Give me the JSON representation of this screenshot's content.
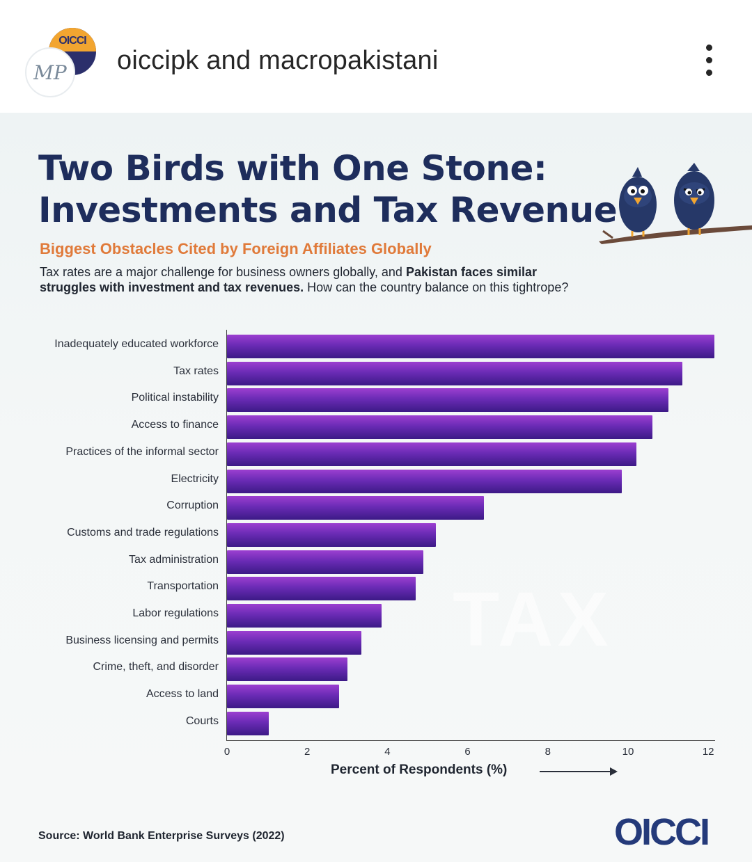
{
  "post": {
    "handles_a": "oiccipk",
    "handles_joiner": "and",
    "handles_b": "macropakistani",
    "avatar_back_text": "OICCI",
    "avatar_front_text": "MP"
  },
  "infographic": {
    "title_line1": "Two Birds with One Stone:",
    "title_line2": "Investments and Tax Revenue",
    "subtitle": "Biggest Obstacles Cited by Foreign Affiliates Globally",
    "desc_part1": "Tax rates are a major challenge for business owners globally, and ",
    "desc_bold": "Pakistan faces similar struggles with investment and tax revenues.",
    "desc_part2": " How can the country balance on this tightrope?",
    "watermark": "TAX",
    "source": "Source: World Bank Enterprise Surveys (2022)",
    "logo": "OICCI"
  },
  "colors": {
    "title": "#1e2d5c",
    "subtitle": "#e07a3a",
    "bar_top": "#9c3fd0",
    "bar_bottom": "#3c1a86"
  },
  "chart_data": {
    "type": "bar",
    "orientation": "horizontal",
    "categories": [
      "Inadequately educated workforce",
      "Tax rates",
      "Political instability",
      "Access to finance",
      "Practices of the informal sector",
      "Electricity",
      "Corruption",
      "Customs and trade regulations",
      "Tax administration",
      "Transportation",
      "Labor regulations",
      "Business licensing and permits",
      "Crime, theft, and disorder",
      "Access to land",
      "Courts"
    ],
    "values": [
      12.15,
      11.35,
      11.0,
      10.6,
      10.2,
      9.85,
      6.4,
      5.2,
      4.9,
      4.7,
      3.85,
      3.35,
      3.0,
      2.8,
      1.05
    ],
    "xlabel": "Percent of Respondents (%)",
    "xticks": [
      0,
      2,
      4,
      6,
      8,
      10,
      12
    ],
    "xlim": [
      0,
      12.2
    ],
    "grid": false
  }
}
